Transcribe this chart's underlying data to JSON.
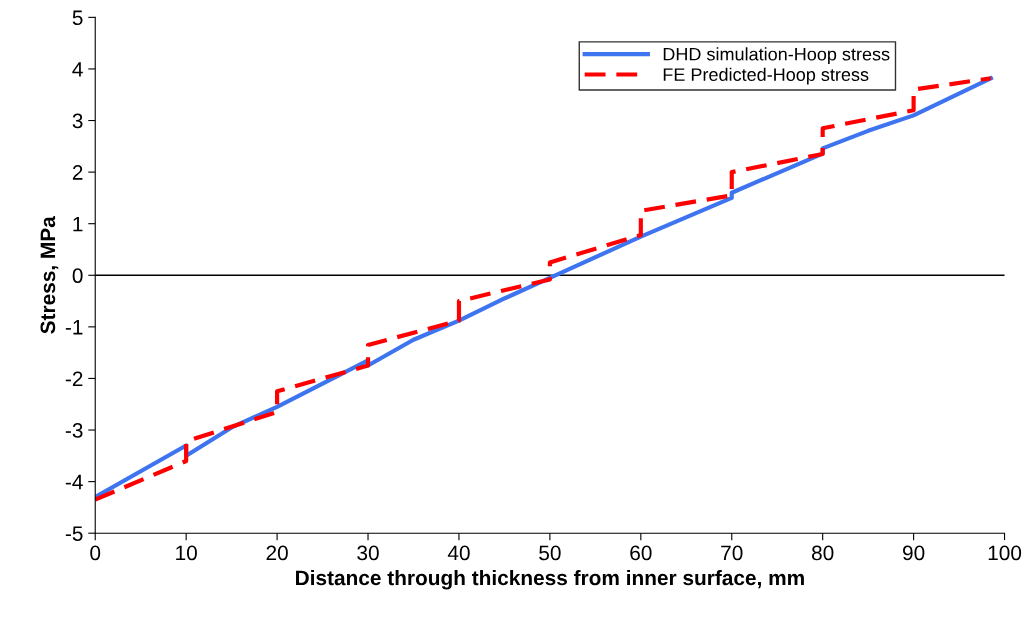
{
  "chart_data": {
    "type": "line",
    "xlabel": "Distance through thickness from inner surface, mm",
    "ylabel": "Stress, MPa",
    "xlim": [
      0,
      100
    ],
    "xticks": [
      0,
      10,
      20,
      30,
      40,
      50,
      60,
      70,
      80,
      90,
      100
    ],
    "ylim": [
      -5,
      5
    ],
    "yticks": [
      -5,
      -4,
      -3,
      -2,
      -1,
      0,
      1,
      2,
      3,
      4,
      5
    ],
    "grid": false,
    "legend": "top right",
    "ref_lines": [
      {
        "axis": "y",
        "value": 0,
        "color": "#000000",
        "line_style": "solid"
      }
    ],
    "series": [
      {
        "name": "DHD simulation-Hoop stress",
        "color": "#3f74f0",
        "line_style": "solid",
        "x": [
          0,
          10,
          10,
          15,
          20,
          25,
          30,
          30,
          35,
          40,
          45,
          50,
          60,
          70,
          70,
          80,
          80,
          85,
          90,
          98.5
        ],
        "values": [
          -4.3,
          -3.3,
          -3.5,
          -2.95,
          -2.55,
          -2.1,
          -1.65,
          -1.75,
          -1.25,
          -0.88,
          -0.45,
          -0.05,
          0.75,
          1.5,
          1.6,
          2.36,
          2.46,
          2.8,
          3.1,
          3.82
        ]
      },
      {
        "name": "FE Predicted-Hoop stress",
        "color": "#ff0000",
        "line_style": "dashed",
        "x": [
          0,
          10,
          10,
          20,
          20,
          30,
          30,
          40,
          40,
          50,
          50,
          60,
          60,
          70,
          70,
          80,
          80,
          90,
          90,
          98.5
        ],
        "values": [
          -4.35,
          -3.6,
          -3.22,
          -2.65,
          -2.25,
          -1.75,
          -1.35,
          -0.88,
          -0.5,
          -0.08,
          0.25,
          0.78,
          1.25,
          1.55,
          2.0,
          2.35,
          2.85,
          3.2,
          3.6,
          3.82
        ]
      }
    ]
  }
}
